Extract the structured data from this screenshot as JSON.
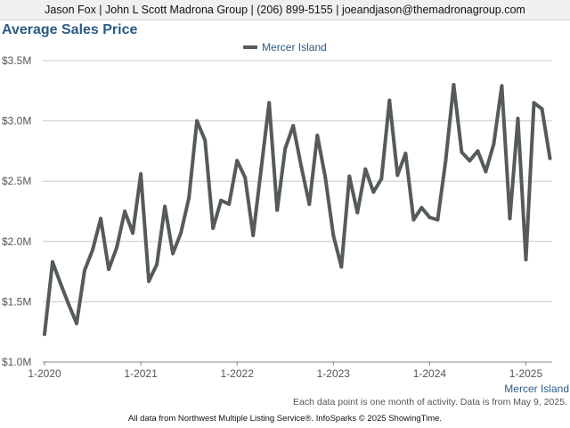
{
  "header": {
    "contact_line": "Jason Fox | John L Scott Madrona Group | (206) 899-5155 | joeandjason@themadronagroup.com"
  },
  "footnote": "Each data point is one month of activity. Data is from May 9, 2025.",
  "footer": "All data from Northwest Multiple Listing Service®. InfoSparks © 2025 ShowingTime.",
  "colors": {
    "series": "#555b5a",
    "title": "#2b5b84",
    "grid": "#c8c8c8"
  },
  "chart_data": {
    "type": "line",
    "title": "Average Sales Price",
    "xlabel": "",
    "ylabel": "",
    "ylim": [
      1000000,
      3500000
    ],
    "y_ticks": [
      1000000,
      1500000,
      2000000,
      2500000,
      3000000,
      3500000
    ],
    "y_tick_labels": [
      "$1.0M",
      "$1.5M",
      "$2.0M",
      "$2.5M",
      "$3.0M",
      "$3.5M"
    ],
    "x_tick_labels": [
      "1-2020",
      "1-2021",
      "1-2022",
      "1-2023",
      "1-2024",
      "1-2025"
    ],
    "grid": true,
    "legend_position": "top-center",
    "end_label": "Mercer Island",
    "x": [
      "2020-01",
      "2020-02",
      "2020-03",
      "2020-04",
      "2020-05",
      "2020-06",
      "2020-07",
      "2020-08",
      "2020-09",
      "2020-10",
      "2020-11",
      "2020-12",
      "2021-01",
      "2021-02",
      "2021-03",
      "2021-04",
      "2021-05",
      "2021-06",
      "2021-07",
      "2021-08",
      "2021-09",
      "2021-10",
      "2021-11",
      "2021-12",
      "2022-01",
      "2022-02",
      "2022-03",
      "2022-04",
      "2022-05",
      "2022-06",
      "2022-07",
      "2022-08",
      "2022-09",
      "2022-10",
      "2022-11",
      "2022-12",
      "2023-01",
      "2023-02",
      "2023-03",
      "2023-04",
      "2023-05",
      "2023-06",
      "2023-07",
      "2023-08",
      "2023-09",
      "2023-10",
      "2023-11",
      "2023-12",
      "2024-01",
      "2024-02",
      "2024-03",
      "2024-04",
      "2024-05",
      "2024-06",
      "2024-07",
      "2024-08",
      "2024-09",
      "2024-10",
      "2024-11",
      "2024-12",
      "2025-01",
      "2025-02",
      "2025-03",
      "2025-04"
    ],
    "series": [
      {
        "name": "Mercer Island",
        "values": [
          1230000,
          1830000,
          1650000,
          1480000,
          1320000,
          1760000,
          1930000,
          2190000,
          1770000,
          1950000,
          2250000,
          2070000,
          2560000,
          1670000,
          1810000,
          2290000,
          1900000,
          2070000,
          2360000,
          3000000,
          2840000,
          2110000,
          2340000,
          2310000,
          2670000,
          2530000,
          2050000,
          2600000,
          3150000,
          2260000,
          2770000,
          2960000,
          2620000,
          2310000,
          2880000,
          2530000,
          2050000,
          1790000,
          2540000,
          2240000,
          2600000,
          2410000,
          2520000,
          3170000,
          2550000,
          2730000,
          2180000,
          2280000,
          2200000,
          2180000,
          2670000,
          3300000,
          2740000,
          2670000,
          2750000,
          2580000,
          2810000,
          3290000,
          2190000,
          3020000,
          1850000,
          3150000,
          3100000,
          2690000
        ]
      }
    ]
  }
}
